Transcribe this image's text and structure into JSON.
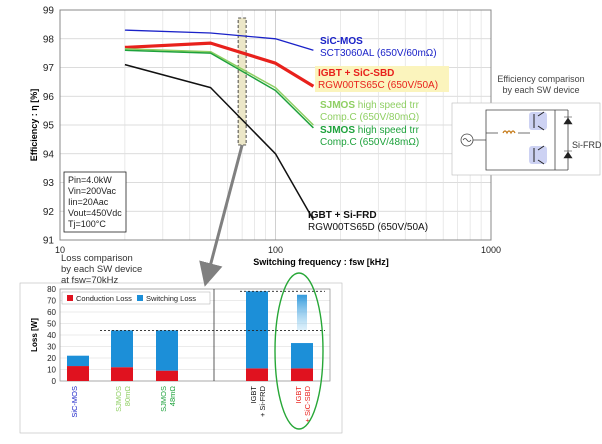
{
  "chart_data": [
    {
      "type": "line",
      "xlabel": "Switching frequency : fsw [kHz]",
      "ylabel": "Efficiency : η [%]",
      "xscale": "log",
      "xlim": [
        10,
        1000
      ],
      "ylim": [
        91,
        99
      ],
      "xticks": [
        10,
        100,
        1000
      ],
      "yticks": [
        91,
        92,
        93,
        94,
        95,
        96,
        97,
        98,
        99
      ],
      "grid": true,
      "series": [
        {
          "color": "#1a22c8",
          "width": 1.3,
          "x": [
            20,
            50,
            100,
            150
          ],
          "y": [
            98.3,
            98.2,
            98.0,
            97.6
          ]
        },
        {
          "color": "#e8211c",
          "width": 3.2,
          "x": [
            20,
            50,
            100,
            150
          ],
          "y": [
            97.7,
            97.85,
            97.15,
            96.35
          ]
        },
        {
          "color": "#8fcf63",
          "width": 1.5,
          "x": [
            20,
            50,
            100,
            150
          ],
          "y": [
            97.65,
            97.55,
            96.3,
            95.0
          ]
        },
        {
          "color": "#1ea23c",
          "width": 1.5,
          "x": [
            20,
            50,
            100,
            150
          ],
          "y": [
            97.6,
            97.5,
            96.2,
            94.9
          ]
        },
        {
          "color": "#111111",
          "width": 1.5,
          "x": [
            20,
            50,
            100,
            150
          ],
          "y": [
            97.1,
            96.3,
            94.0,
            91.7
          ]
        }
      ],
      "series_labels": [
        {
          "title": "SiC-MOS",
          "subtitle": "SCT3060AL (650V/60mΩ)",
          "color": "#1a22c8",
          "highlight": false
        },
        {
          "title": "IGBT + SiC-SBD",
          "subtitle": "RGW00TS65C (650V/50A)",
          "color": "#e8211c",
          "highlight": true
        },
        {
          "title": "SJMOS",
          "title_suffix": " high speed trr",
          "subtitle": "Comp.C (650V/80mΩ)",
          "color": "#8fcf63",
          "highlight": false
        },
        {
          "title": "SJMOS",
          "title_suffix": " high speed trr",
          "subtitle": "Comp.C (650V/48mΩ)",
          "color": "#1ea23c",
          "highlight": false
        },
        {
          "title": "IGBT + Si-FRD",
          "subtitle": "RGW00TS65D (650V/50A)",
          "color": "#111111",
          "highlight": false
        }
      ],
      "conditions": [
        "Pin=4.0kW",
        "Vin=200Vac",
        "Iin=20Aac",
        "Vout=450Vdc",
        "Tj=100°C"
      ],
      "highlight_frequency_khz": 70
    },
    {
      "type": "bar",
      "stacked": true,
      "title": "Loss comparison\nby each SW device\nat fsw=70kHz",
      "ylabel": "Loss [W]",
      "ylim": [
        0,
        80
      ],
      "yticks": [
        0,
        10,
        20,
        30,
        40,
        50,
        60,
        70,
        80
      ],
      "categories": [
        {
          "label": "SiC-MOS",
          "color": "#1a22c8"
        },
        {
          "label": "SJMOS",
          "sub": "80mΩ",
          "color": "#8fcf63"
        },
        {
          "label": "SJMOS",
          "sub": "48mΩ",
          "color": "#1ea23c"
        },
        {
          "label": "IGBT",
          "sub": "+ Si-FRD",
          "color": "#111111"
        },
        {
          "label": "IGBT",
          "sub": "+ SiC-SBD",
          "color": "#e8211c"
        }
      ],
      "series": [
        {
          "name": "Conduction Loss",
          "color": "#e0121f",
          "values": [
            13,
            12,
            9,
            11,
            11
          ]
        },
        {
          "name": "Switching Loss",
          "color": "#1c8fd8",
          "values": [
            9,
            32,
            35,
            67,
            22
          ]
        }
      ],
      "reference_lines": [
        44,
        78
      ],
      "reduction_arrow": {
        "from": 75,
        "to": 44
      }
    }
  ],
  "circuit": {
    "title": "Efficiency comparison\nby each SW device",
    "diode_label": "Si-FRD"
  }
}
